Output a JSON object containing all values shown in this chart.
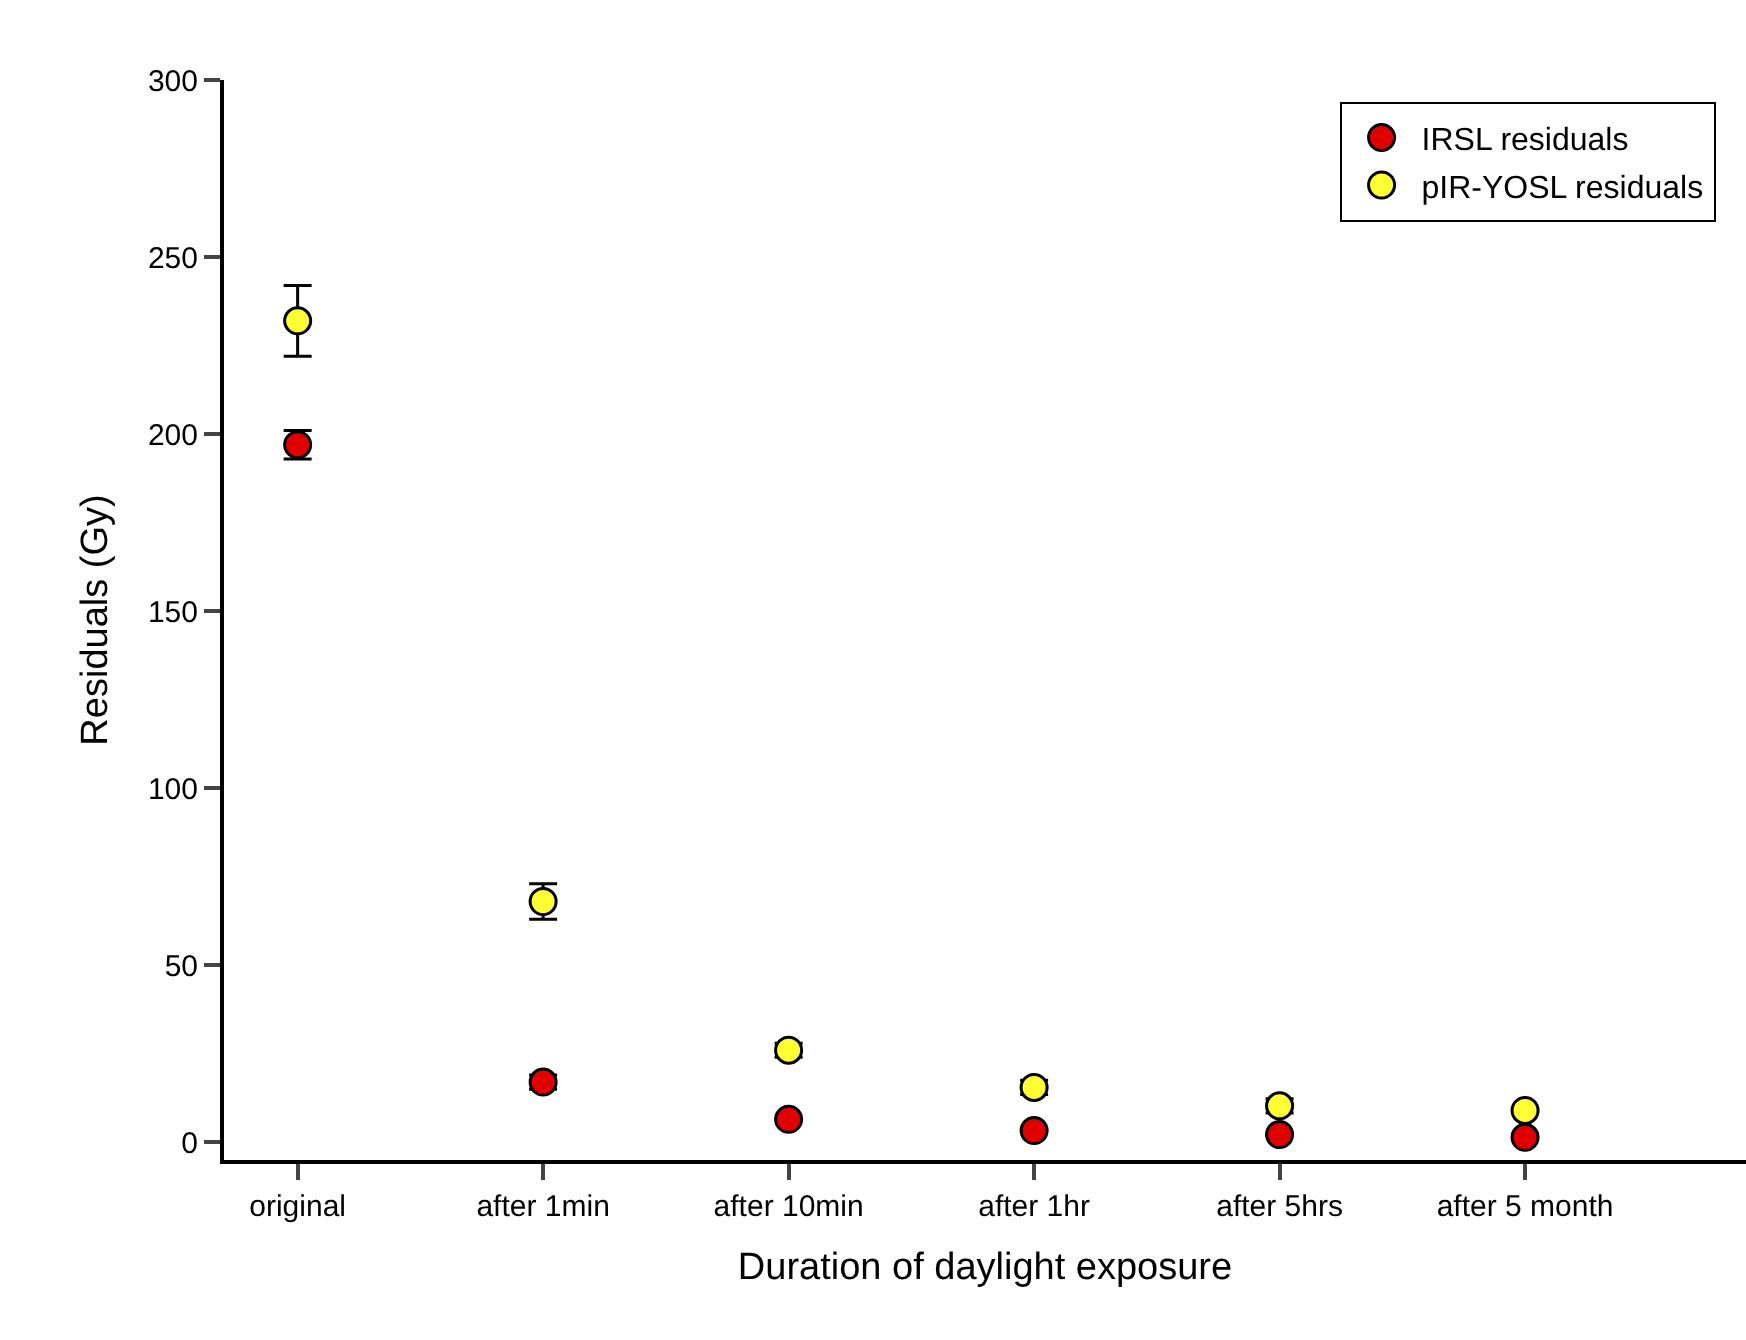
{
  "chart_data": {
    "type": "scatter",
    "xlabel": "Duration of daylight exposure",
    "ylabel": "Residuals (Gy)",
    "categories": [
      "original",
      "after 1min",
      "after 10min",
      "after 1hr",
      "after 5hrs",
      "after 5 month"
    ],
    "series": [
      {
        "name": "IRSL residuals",
        "color": "#e00000",
        "values": [
          197,
          17,
          6.5,
          3.3,
          2.2,
          1.4
        ],
        "errors": [
          4,
          2,
          null,
          null,
          null,
          null
        ]
      },
      {
        "name": "pIR-YOSL residuals",
        "color": "#ffff33",
        "values": [
          232,
          68,
          26,
          15.5,
          10.3,
          9
        ],
        "errors": [
          10,
          5,
          2,
          2,
          2,
          null
        ]
      }
    ],
    "ylim": [
      -5,
      300
    ],
    "yticks": [
      0,
      50,
      100,
      150,
      200,
      250,
      300
    ],
    "grid": false,
    "legend": "top right",
    "marker": "circle"
  }
}
